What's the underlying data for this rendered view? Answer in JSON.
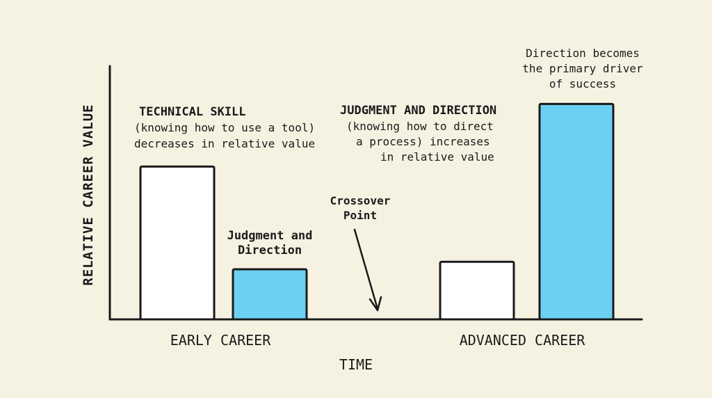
{
  "chart_data": {
    "type": "bar",
    "ylabel": "RELATIVE CAREER VALUE",
    "xlabel": "TIME",
    "categories": [
      "EARLY CAREER",
      "ADVANCED CAREER"
    ],
    "series": [
      {
        "name": "Technical Skill",
        "values": [
          6.1,
          2.3
        ],
        "color": "#ffffff"
      },
      {
        "name": "Judgment and Direction",
        "values": [
          2.0,
          8.6
        ],
        "color": "#6cd0f2"
      }
    ],
    "ylim": [
      0,
      10
    ],
    "grid": false,
    "annotations": {
      "technical_title": "TECHNICAL SKILL",
      "technical_l1": "(knowing how to use a tool)",
      "technical_l2": "decreases in relative value",
      "judgment_title": "JUDGMENT AND DIRECTION",
      "judgment_l1": "(knowing how to direct",
      "judgment_l2": "a process) increases",
      "judgment_l3": "in relative value",
      "bar_label_l1": "Judgment and",
      "bar_label_l2": "Direction",
      "crossover_l1": "Crossover",
      "crossover_l2": "Point",
      "direction_l1": "Direction becomes",
      "direction_l2": "the primary driver",
      "direction_l3": "of success"
    }
  }
}
